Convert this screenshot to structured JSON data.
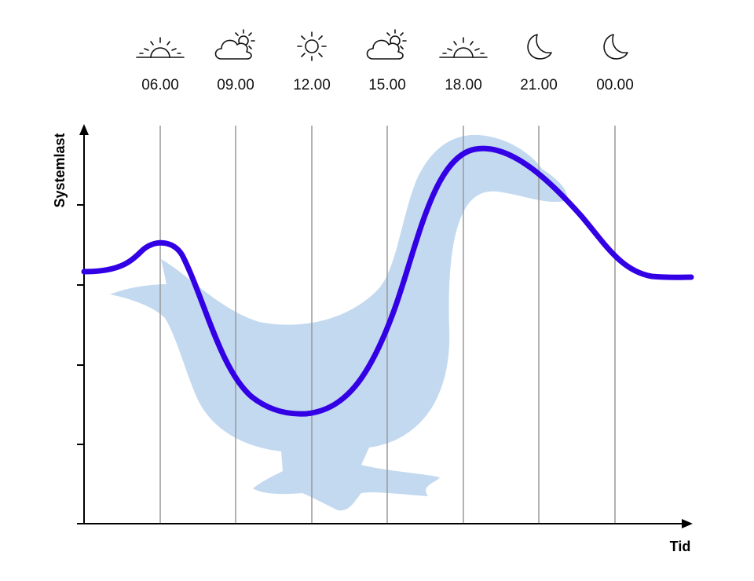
{
  "time_labels": [
    "06.00",
    "09.00",
    "12.00",
    "15.00",
    "18.00",
    "21.00",
    "00.00"
  ],
  "y_axis_label": "Systemlast",
  "x_axis_label": "Tid"
}
